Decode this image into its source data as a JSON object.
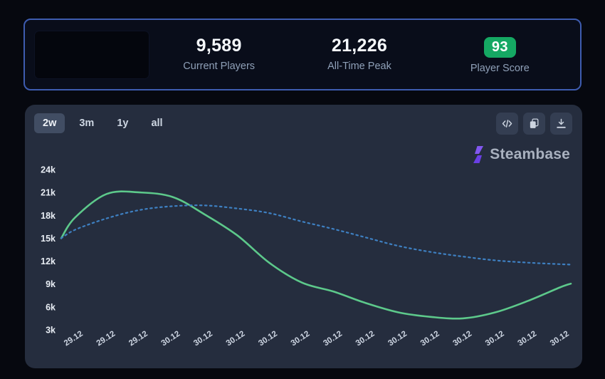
{
  "stats_card": {
    "stats": [
      {
        "value": "9,589",
        "label": "Current Players"
      },
      {
        "value": "21,226",
        "label": "All-Time Peak"
      },
      {
        "value": "93",
        "label": "Player Score"
      }
    ],
    "badge_color": "#15a863"
  },
  "toolbar": {
    "ranges": [
      {
        "label": "2w",
        "selected": true
      },
      {
        "label": "3m",
        "selected": false
      },
      {
        "label": "1y",
        "selected": false
      },
      {
        "label": "all",
        "selected": false
      }
    ],
    "icon_buttons": [
      "embed-code",
      "copy",
      "download"
    ]
  },
  "brand": {
    "name": "Steambase",
    "logo_color": "#7a4ce8"
  },
  "chart_data": {
    "type": "line",
    "title": "",
    "grid": false,
    "legend": "none",
    "y_range": [
      3000,
      24000
    ],
    "y_ticks": [
      "24k",
      "21k",
      "18k",
      "15k",
      "12k",
      "9k",
      "6k",
      "3k"
    ],
    "y_tick_values": [
      24000,
      21000,
      18000,
      15000,
      12000,
      9000,
      6000,
      3000
    ],
    "x_labels": [
      "29.12",
      "29.12",
      "29.12",
      "30.12",
      "30.12",
      "30.12",
      "30.12",
      "30.12",
      "30.12",
      "30.12",
      "30.12",
      "30.12",
      "30.12",
      "30.12",
      "30.12",
      "30.12"
    ],
    "series": [
      {
        "name": "players-green-solid",
        "style": "solid",
        "color": "#5dc98b",
        "points": [
          [
            0.0,
            15000
          ],
          [
            0.027,
            17700
          ],
          [
            0.089,
            20800
          ],
          [
            0.154,
            21000
          ],
          [
            0.219,
            20400
          ],
          [
            0.282,
            18100
          ],
          [
            0.345,
            15400
          ],
          [
            0.408,
            11800
          ],
          [
            0.472,
            9200
          ],
          [
            0.535,
            8000
          ],
          [
            0.598,
            6500
          ],
          [
            0.661,
            5300
          ],
          [
            0.725,
            4700
          ],
          [
            0.788,
            4500
          ],
          [
            0.852,
            5300
          ],
          [
            0.916,
            6800
          ],
          [
            0.98,
            8600
          ],
          [
            1.0,
            9050
          ]
        ]
      },
      {
        "name": "trend-blue-dotted",
        "style": "dotted",
        "color": "#3e80c2",
        "points": [
          [
            0.0,
            15000
          ],
          [
            0.027,
            16100
          ],
          [
            0.089,
            17600
          ],
          [
            0.154,
            18700
          ],
          [
            0.219,
            19200
          ],
          [
            0.282,
            19300
          ],
          [
            0.345,
            18900
          ],
          [
            0.408,
            18300
          ],
          [
            0.472,
            17200
          ],
          [
            0.535,
            16200
          ],
          [
            0.598,
            15100
          ],
          [
            0.661,
            14000
          ],
          [
            0.725,
            13200
          ],
          [
            0.788,
            12600
          ],
          [
            0.852,
            12100
          ],
          [
            0.916,
            11800
          ],
          [
            0.98,
            11600
          ],
          [
            1.0,
            11550
          ]
        ]
      }
    ]
  }
}
